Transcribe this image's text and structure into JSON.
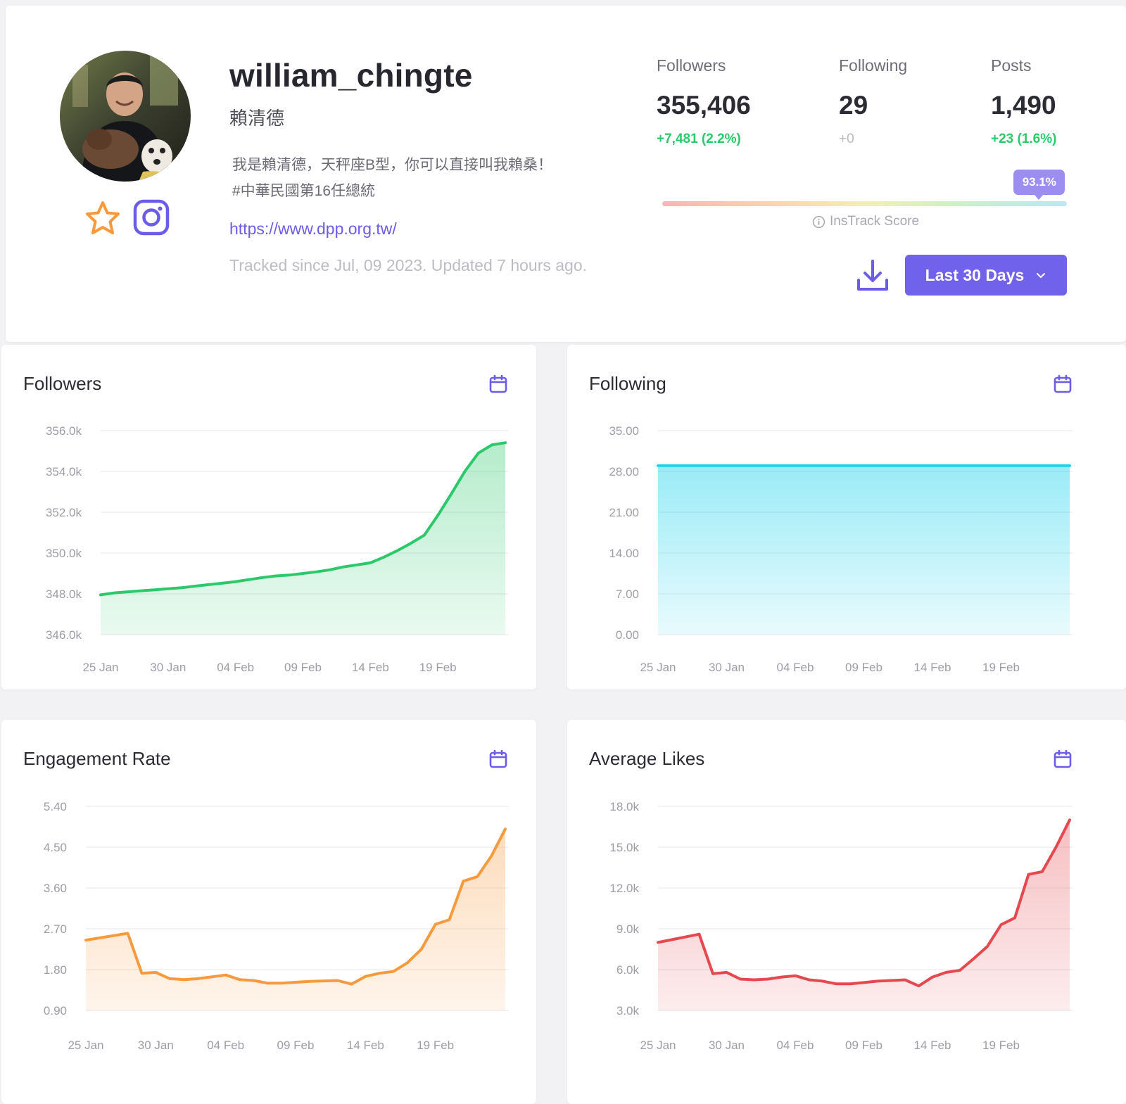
{
  "profile": {
    "username": "william_chingte",
    "full_name": "賴清德",
    "bio_line1": "我是賴清德，天秤座B型，你可以直接叫我賴桑！",
    "bio_line2": "#中華民國第16任總統",
    "link": "https://www.dpp.org.tw/",
    "tracked": "Tracked since Jul, 09 2023. Updated 7 hours ago."
  },
  "stats": {
    "followers": {
      "label": "Followers",
      "value": "355,406",
      "delta": "+7,481 (2.2%)"
    },
    "following": {
      "label": "Following",
      "value": "29",
      "delta": "+0"
    },
    "posts": {
      "label": "Posts",
      "value": "1,490",
      "delta": "+23 (1.6%)"
    }
  },
  "score": {
    "value": "93.1%",
    "fraction": 0.931,
    "label": "InsTrack Score"
  },
  "range_button": {
    "label": "Last 30 Days"
  },
  "colors": {
    "accent": "#7062ea",
    "followers": "#2cc96b",
    "following": "#1ed3ec",
    "engagement": "#f79a3e",
    "likes": "#e5484f"
  },
  "icons": {
    "favorite": "star-icon",
    "instagram": "instagram-icon",
    "download": "download-icon",
    "calendar": "calendar-icon",
    "info": "info-icon",
    "chevron": "chevron-down-icon"
  },
  "chart_data": [
    {
      "type": "area",
      "title": "Followers",
      "color": "#2cc96b",
      "y_ticks": [
        "356.0k",
        "354.0k",
        "352.0k",
        "350.0k",
        "348.0k",
        "346.0k"
      ],
      "ylim": [
        346000,
        356000
      ],
      "x_ticks": [
        "25 Jan",
        "30 Jan",
        "04 Feb",
        "09 Feb",
        "14 Feb",
        "19 Feb"
      ],
      "x": [
        "25 Jan",
        "26 Jan",
        "27 Jan",
        "28 Jan",
        "29 Jan",
        "30 Jan",
        "31 Jan",
        "01 Feb",
        "02 Feb",
        "03 Feb",
        "04 Feb",
        "05 Feb",
        "06 Feb",
        "07 Feb",
        "08 Feb",
        "09 Feb",
        "10 Feb",
        "11 Feb",
        "12 Feb",
        "13 Feb",
        "14 Feb",
        "15 Feb",
        "16 Feb",
        "17 Feb",
        "18 Feb",
        "19 Feb",
        "20 Feb",
        "21 Feb",
        "22 Feb",
        "23 Feb",
        "24 Feb"
      ],
      "values": [
        347950,
        348050,
        348100,
        348150,
        348200,
        348250,
        348300,
        348380,
        348450,
        348520,
        348600,
        348700,
        348800,
        348880,
        348920,
        349000,
        349080,
        349180,
        349320,
        349420,
        349520,
        349800,
        350120,
        350480,
        350880,
        351850,
        352900,
        354000,
        354900,
        355300,
        355406
      ]
    },
    {
      "type": "area",
      "title": "Following",
      "color": "#1ed3ec",
      "y_ticks": [
        "35.00",
        "28.00",
        "21.00",
        "14.00",
        "7.00",
        "0.00"
      ],
      "ylim": [
        0,
        35
      ],
      "x_ticks": [
        "25 Jan",
        "30 Jan",
        "04 Feb",
        "09 Feb",
        "14 Feb",
        "19 Feb"
      ],
      "x": [
        "25 Jan",
        "26 Jan",
        "27 Jan",
        "28 Jan",
        "29 Jan",
        "30 Jan",
        "31 Jan",
        "01 Feb",
        "02 Feb",
        "03 Feb",
        "04 Feb",
        "05 Feb",
        "06 Feb",
        "07 Feb",
        "08 Feb",
        "09 Feb",
        "10 Feb",
        "11 Feb",
        "12 Feb",
        "13 Feb",
        "14 Feb",
        "15 Feb",
        "16 Feb",
        "17 Feb",
        "18 Feb",
        "19 Feb",
        "20 Feb",
        "21 Feb",
        "22 Feb",
        "23 Feb",
        "24 Feb"
      ],
      "values": [
        29,
        29,
        29,
        29,
        29,
        29,
        29,
        29,
        29,
        29,
        29,
        29,
        29,
        29,
        29,
        29,
        29,
        29,
        29,
        29,
        29,
        29,
        29,
        29,
        29,
        29,
        29,
        29,
        29,
        29,
        29
      ]
    },
    {
      "type": "area",
      "title": "Engagement Rate",
      "color": "#f79a3e",
      "y_ticks": [
        "5.40",
        "4.50",
        "3.60",
        "2.70",
        "1.80",
        "0.90"
      ],
      "ylim": [
        0.9,
        5.4
      ],
      "x_ticks": [
        "25 Jan",
        "30 Jan",
        "04 Feb",
        "09 Feb",
        "14 Feb",
        "19 Feb"
      ],
      "x": [
        "25 Jan",
        "26 Jan",
        "27 Jan",
        "28 Jan",
        "29 Jan",
        "30 Jan",
        "31 Jan",
        "01 Feb",
        "02 Feb",
        "03 Feb",
        "04 Feb",
        "05 Feb",
        "06 Feb",
        "07 Feb",
        "08 Feb",
        "09 Feb",
        "10 Feb",
        "11 Feb",
        "12 Feb",
        "13 Feb",
        "14 Feb",
        "15 Feb",
        "16 Feb",
        "17 Feb",
        "18 Feb",
        "19 Feb",
        "20 Feb",
        "21 Feb",
        "22 Feb",
        "23 Feb",
        "24 Feb"
      ],
      "values": [
        2.45,
        2.5,
        2.55,
        2.6,
        1.72,
        1.74,
        1.6,
        1.58,
        1.6,
        1.64,
        1.68,
        1.58,
        1.56,
        1.5,
        1.5,
        1.52,
        1.54,
        1.55,
        1.56,
        1.48,
        1.65,
        1.72,
        1.76,
        1.95,
        2.25,
        2.8,
        2.9,
        3.75,
        3.85,
        4.3,
        4.9
      ]
    },
    {
      "type": "area",
      "title": "Average Likes",
      "color": "#e5484f",
      "y_ticks": [
        "18.0k",
        "15.0k",
        "12.0k",
        "9.0k",
        "6.0k",
        "3.0k"
      ],
      "ylim": [
        3000,
        18000
      ],
      "x_ticks": [
        "25 Jan",
        "30 Jan",
        "04 Feb",
        "09 Feb",
        "14 Feb",
        "19 Feb"
      ],
      "x": [
        "25 Jan",
        "26 Jan",
        "27 Jan",
        "28 Jan",
        "29 Jan",
        "30 Jan",
        "31 Jan",
        "01 Feb",
        "02 Feb",
        "03 Feb",
        "04 Feb",
        "05 Feb",
        "06 Feb",
        "07 Feb",
        "08 Feb",
        "09 Feb",
        "10 Feb",
        "11 Feb",
        "12 Feb",
        "13 Feb",
        "14 Feb",
        "15 Feb",
        "16 Feb",
        "17 Feb",
        "18 Feb",
        "19 Feb",
        "20 Feb",
        "21 Feb",
        "22 Feb",
        "23 Feb",
        "24 Feb"
      ],
      "values": [
        8000,
        8200,
        8400,
        8600,
        5700,
        5800,
        5300,
        5250,
        5300,
        5450,
        5550,
        5250,
        5150,
        4950,
        4950,
        5050,
        5150,
        5200,
        5250,
        4800,
        5450,
        5800,
        5950,
        6800,
        7700,
        9300,
        9800,
        13000,
        13200,
        15000,
        17000
      ]
    }
  ]
}
